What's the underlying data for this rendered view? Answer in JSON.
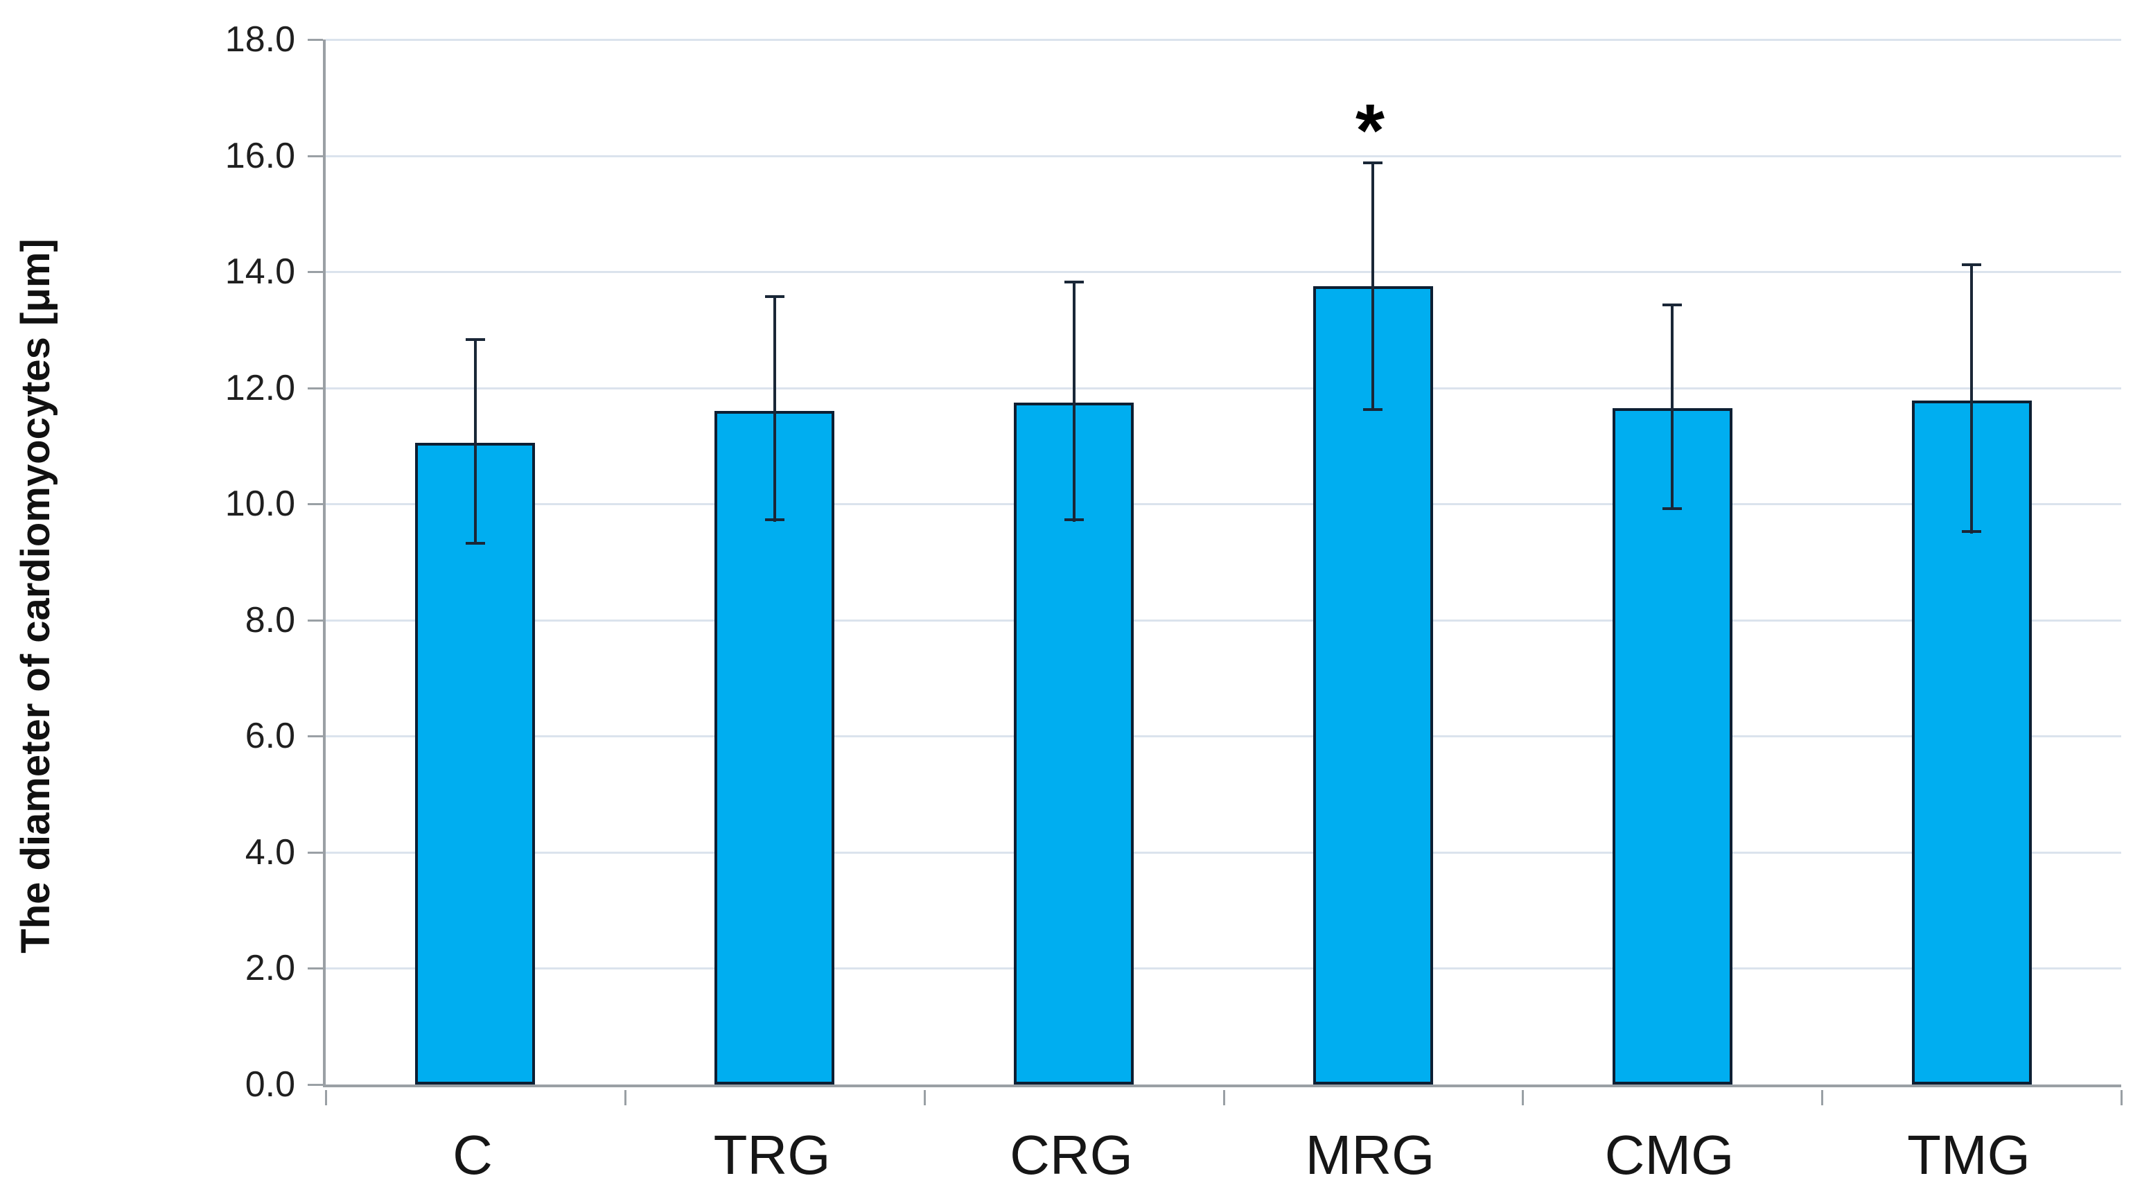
{
  "chart_data": {
    "type": "bar",
    "title": "",
    "ylabel": "The diameter of cardiomyocytes [μm]",
    "xlabel": "",
    "categories": [
      "C",
      "TRG",
      "CRG",
      "MRG",
      "CMG",
      "TMG"
    ],
    "values": [
      11.05,
      11.6,
      11.75,
      13.75,
      11.65,
      11.78
    ],
    "error_up": [
      1.8,
      2.0,
      2.1,
      2.15,
      1.8,
      2.37
    ],
    "error_down": [
      1.75,
      1.9,
      2.05,
      2.15,
      1.75,
      2.28
    ],
    "ylim": [
      0,
      18
    ],
    "y_tick_step": 2,
    "y_tick_labels_top_to_bottom": [
      "18.0",
      "16.0",
      "14.0",
      "12.0",
      "10.0",
      "8.0",
      "6.0",
      "4.0",
      "2.0",
      "0.0"
    ],
    "grid": true,
    "legend": false,
    "bar_width_fraction": 0.4,
    "annotations": [
      {
        "text": "*",
        "category": "MRG"
      }
    ]
  },
  "style": {
    "bar_fill": "#00AEF0",
    "bar_border": "#0d1f33",
    "error_color": "#1a2737",
    "gridline_color": "#dbe3ed",
    "axis_color": "#9aa0a5",
    "tick_color": "#9aa0a5",
    "label_color": "#1f1f1f",
    "background": "#ffffff"
  }
}
